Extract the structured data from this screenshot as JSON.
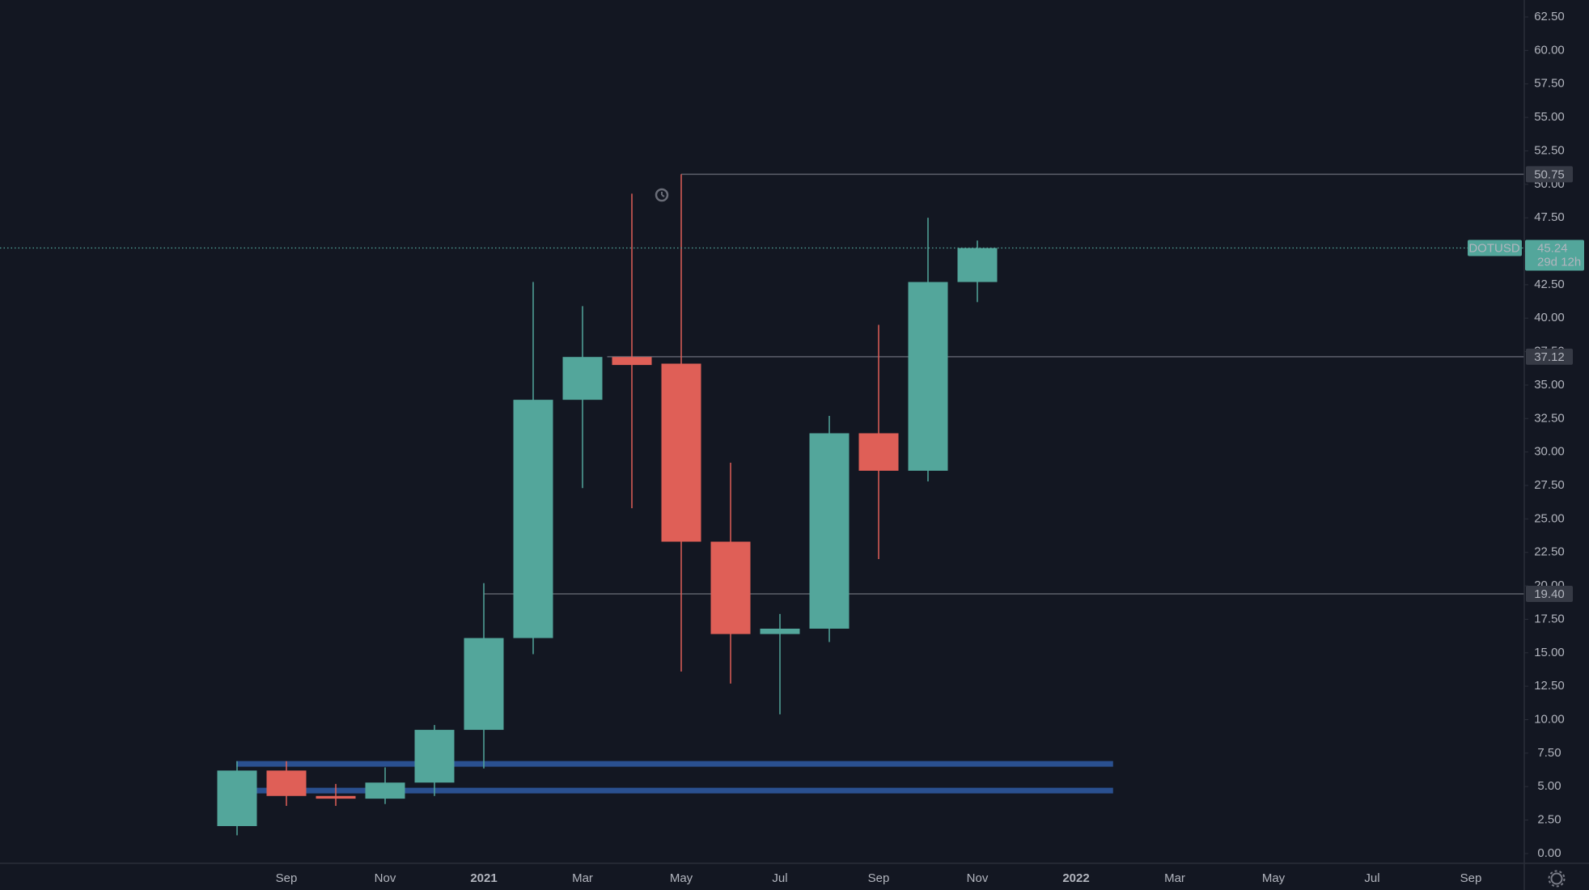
{
  "chart_data": {
    "type": "candlestick",
    "symbol": "DOTUSD",
    "categories": [
      null,
      "Sep",
      null,
      "Nov",
      null,
      "2021",
      null,
      "Mar",
      null,
      "May",
      null,
      "Jul",
      null,
      "Sep",
      null,
      "Nov",
      null,
      "2022",
      null,
      "Mar",
      null,
      "May",
      null,
      "Jul",
      null,
      "Sep"
    ],
    "open": [
      2.05,
      6.2,
      4.3,
      4.1,
      5.3,
      9.24,
      16.1,
      33.9,
      37.1,
      36.6,
      23.3,
      16.4,
      16.8,
      31.4,
      28.6,
      42.7,
      null,
      null,
      null,
      null,
      null,
      null,
      null,
      null,
      null,
      null
    ],
    "high": [
      6.9,
      6.9,
      5.2,
      6.44,
      9.6,
      20.2,
      42.7,
      40.9,
      49.3,
      50.75,
      29.2,
      17.9,
      32.7,
      39.5,
      47.5,
      45.8,
      null,
      null,
      null,
      null,
      null,
      null,
      null,
      null,
      null,
      null
    ],
    "low": [
      1.36,
      3.56,
      3.56,
      3.7,
      4.3,
      6.36,
      14.9,
      27.3,
      25.8,
      13.6,
      12.7,
      10.4,
      15.8,
      22.0,
      27.8,
      41.2,
      null,
      null,
      null,
      null,
      null,
      null,
      null,
      null,
      null,
      null
    ],
    "close": [
      6.2,
      4.3,
      4.1,
      5.3,
      9.24,
      16.1,
      33.9,
      37.1,
      36.5,
      23.3,
      16.4,
      16.8,
      31.4,
      28.6,
      42.7,
      45.24,
      null,
      null,
      null,
      null,
      null,
      null,
      null,
      null,
      null,
      null
    ],
    "up_color": "#53a69b",
    "down_color": "#df5f57",
    "ylim": [
      -0.73,
      63.77
    ],
    "yticks": [
      {
        "value": 0,
        "label": "0.00"
      },
      {
        "value": 2.5,
        "label": "2.50"
      },
      {
        "value": 5,
        "label": "5.00"
      },
      {
        "value": 7.5,
        "label": "7.50"
      },
      {
        "value": 10,
        "label": "10.00"
      },
      {
        "value": 12.5,
        "label": "12.50"
      },
      {
        "value": 15,
        "label": "15.00"
      },
      {
        "value": 17.5,
        "label": "17.50"
      },
      {
        "value": 20,
        "label": "20.00"
      },
      {
        "value": 22.5,
        "label": "22.50"
      },
      {
        "value": 25,
        "label": "25.00"
      },
      {
        "value": 27.5,
        "label": "27.50"
      },
      {
        "value": 30,
        "label": "30.00"
      },
      {
        "value": 32.5,
        "label": "32.50"
      },
      {
        "value": 35,
        "label": "35.00"
      },
      {
        "value": 37.5,
        "label": "37.50"
      },
      {
        "value": 40,
        "label": "40.00"
      },
      {
        "value": 42.5,
        "label": "42.50"
      },
      {
        "value": 45,
        "label": "45.00"
      },
      {
        "value": 47.5,
        "label": "47.50"
      },
      {
        "value": 50,
        "label": "50.00"
      },
      {
        "value": 52.5,
        "label": "52.50"
      },
      {
        "value": 55,
        "label": "55.00"
      },
      {
        "value": 57.5,
        "label": "57.50"
      },
      {
        "value": 60,
        "label": "60.00"
      },
      {
        "value": 62.5,
        "label": "62.50"
      }
    ],
    "price_lines": [
      {
        "value": 50.75,
        "label": "50.75"
      },
      {
        "value": 37.12,
        "label": "37.12"
      },
      {
        "value": 19.4,
        "label": "19.40"
      }
    ],
    "zones": [
      6.7,
      4.7
    ],
    "zone_color": "#2a5090",
    "last_price": {
      "value": 45.24,
      "label": "45.24",
      "countdown": "29d 12h"
    }
  }
}
